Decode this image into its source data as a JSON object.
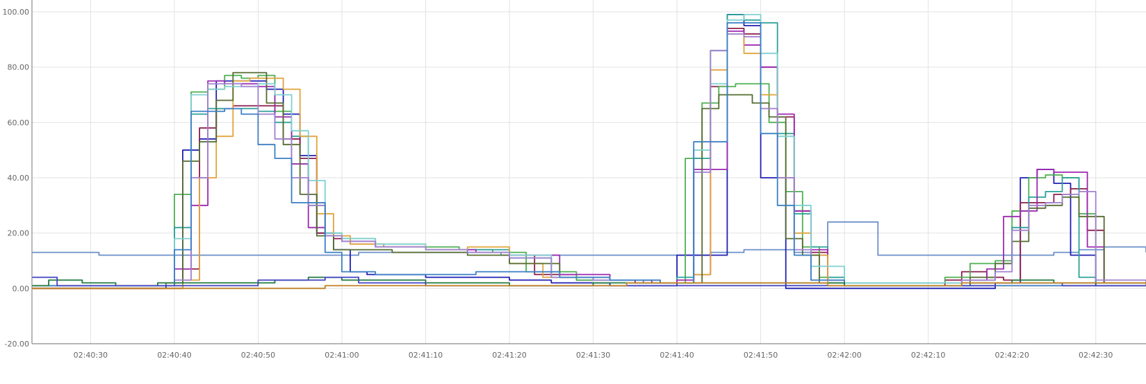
{
  "chart_data": {
    "type": "line",
    "title": "",
    "xlabel": "",
    "ylabel": "",
    "ylim": [
      -20,
      100
    ],
    "xlim": [
      "02:40:23",
      "02:42:36"
    ],
    "yticks": [
      "100.00",
      "80.00",
      "60.00",
      "40.00",
      "20.00",
      "0.00",
      "-20.00"
    ],
    "xticks": [
      "02:40:30",
      "02:40:40",
      "02:40:50",
      "02:41:00",
      "02:41:10",
      "02:41:20",
      "02:41:30",
      "02:41:40",
      "02:41:50",
      "02:42:00",
      "02:42:10",
      "02:42:20",
      "02:42:30"
    ],
    "grid": true,
    "legend": "none",
    "interpolation": "step",
    "series": [
      {
        "color": "#6b8fc9",
        "x": [
          "02:40:23",
          "02:40:27",
          "02:40:31",
          "02:40:35",
          "02:40:40",
          "02:40:49",
          "02:40:55",
          "02:41:02",
          "02:41:10",
          "02:41:19",
          "02:41:21",
          "02:41:23",
          "02:41:28",
          "02:41:32",
          "02:41:36",
          "02:41:42",
          "02:41:44",
          "02:41:46",
          "02:41:48",
          "02:41:51",
          "02:41:54",
          "02:41:56",
          "02:41:58",
          "02:42:04",
          "02:42:10",
          "02:42:16",
          "02:42:22",
          "02:42:25",
          "02:42:28",
          "02:42:31",
          "02:42:33",
          "02:42:36"
        ],
        "y": [
          13,
          13,
          12,
          12,
          12,
          12,
          12,
          13,
          13,
          12,
          12,
          12,
          12,
          12,
          12,
          12,
          13,
          13,
          14,
          14,
          13,
          12,
          24,
          12,
          12,
          12,
          12,
          13,
          14,
          15,
          15,
          13
        ]
      },
      {
        "color": "#1f1fb4",
        "x": [
          "02:40:23",
          "02:40:39",
          "02:40:41",
          "02:40:43",
          "02:40:45",
          "02:40:47",
          "02:40:49",
          "02:40:51",
          "02:40:53",
          "02:40:55",
          "02:40:57",
          "02:40:59",
          "02:41:01",
          "02:41:03",
          "02:41:10",
          "02:41:18",
          "02:41:20",
          "02:41:25",
          "02:41:32",
          "02:41:38",
          "02:41:40",
          "02:41:42",
          "02:41:44",
          "02:41:46",
          "02:41:48",
          "02:41:50",
          "02:41:53",
          "02:42:00",
          "02:42:16",
          "02:42:18",
          "02:42:21",
          "02:42:23",
          "02:42:25",
          "02:42:27",
          "02:42:30",
          "02:42:36"
        ],
        "y": [
          0,
          1,
          50,
          54,
          75,
          75,
          75,
          72,
          63,
          48,
          20,
          14,
          6,
          5,
          4,
          4,
          3,
          2,
          1,
          1,
          12,
          12,
          12,
          99,
          95,
          40,
          0,
          0,
          0,
          2,
          40,
          43,
          38,
          12,
          1,
          1
        ]
      },
      {
        "color": "#8b1a4a",
        "x": [
          "02:40:23",
          "02:40:39",
          "02:40:41",
          "02:40:43",
          "02:40:45",
          "02:40:47",
          "02:40:49",
          "02:40:51",
          "02:40:53",
          "02:40:55",
          "02:40:57",
          "02:40:59",
          "02:41:01",
          "02:41:05",
          "02:41:10",
          "02:41:15",
          "02:41:20",
          "02:41:23",
          "02:41:28",
          "02:41:35",
          "02:41:39",
          "02:41:42",
          "02:41:44",
          "02:41:46",
          "02:41:48",
          "02:41:50",
          "02:41:52",
          "02:41:54",
          "02:41:56",
          "02:41:58",
          "02:42:00",
          "02:42:10",
          "02:42:12",
          "02:42:14",
          "02:42:17",
          "02:42:19",
          "02:42:21",
          "02:42:23",
          "02:42:25",
          "02:42:27",
          "02:42:29",
          "02:42:31",
          "02:42:36"
        ],
        "y": [
          0,
          0,
          7,
          58,
          65,
          66,
          66,
          66,
          54,
          47,
          20,
          18,
          16,
          15,
          14,
          13,
          12,
          5,
          3,
          2,
          2,
          5,
          73,
          94,
          92,
          80,
          62,
          28,
          13,
          3,
          1,
          1,
          3,
          6,
          4,
          3,
          31,
          31,
          34,
          36,
          21,
          2,
          1
        ]
      },
      {
        "color": "#4caf50",
        "x": [
          "02:40:23",
          "02:40:38",
          "02:40:40",
          "02:40:42",
          "02:40:44",
          "02:40:46",
          "02:40:48",
          "02:40:50",
          "02:40:52",
          "02:40:54",
          "02:40:56",
          "02:40:58",
          "02:41:00",
          "02:41:04",
          "02:41:10",
          "02:41:14",
          "02:41:18",
          "02:41:22",
          "02:41:28",
          "02:41:36",
          "02:41:39",
          "02:41:41",
          "02:41:43",
          "02:41:45",
          "02:41:47",
          "02:41:49",
          "02:41:51",
          "02:41:53",
          "02:41:55",
          "02:41:57",
          "02:42:00",
          "02:42:08",
          "02:42:12",
          "02:42:15",
          "02:42:18",
          "02:42:20",
          "02:42:22",
          "02:42:24",
          "02:42:26",
          "02:42:28",
          "02:42:30",
          "02:42:36"
        ],
        "y": [
          1,
          1,
          34,
          71,
          72,
          77,
          76,
          77,
          64,
          45,
          30,
          19,
          18,
          16,
          15,
          14,
          13,
          6,
          3,
          2,
          2,
          47,
          67,
          73,
          74,
          74,
          60,
          35,
          15,
          4,
          2,
          2,
          4,
          9,
          10,
          28,
          40,
          41,
          40,
          27,
          2,
          1
        ]
      },
      {
        "color": "#2aa198",
        "x": [
          "02:40:23",
          "02:40:38",
          "02:40:40",
          "02:40:42",
          "02:40:44",
          "02:40:46",
          "02:40:48",
          "02:40:50",
          "02:40:52",
          "02:40:54",
          "02:40:56",
          "02:40:58",
          "02:41:00",
          "02:41:04",
          "02:41:10",
          "02:41:15",
          "02:41:20",
          "02:41:25",
          "02:41:30",
          "02:41:36",
          "02:41:40",
          "02:41:42",
          "02:41:44",
          "02:41:46",
          "02:41:48",
          "02:41:50",
          "02:41:52",
          "02:41:54",
          "02:41:56",
          "02:41:58",
          "02:42:00",
          "02:42:10",
          "02:42:14",
          "02:42:18",
          "02:42:20",
          "02:42:22",
          "02:42:24",
          "02:42:26",
          "02:42:28",
          "02:42:30",
          "02:42:36"
        ],
        "y": [
          1,
          1,
          22,
          63,
          65,
          65,
          65,
          64,
          60,
          55,
          31,
          20,
          17,
          15,
          14,
          14,
          11,
          4,
          3,
          2,
          4,
          47,
          86,
          99,
          97,
          96,
          56,
          27,
          15,
          4,
          2,
          2,
          3,
          9,
          22,
          33,
          35,
          40,
          4,
          2,
          1
        ]
      },
      {
        "color": "#9c27b0",
        "x": [
          "02:40:23",
          "02:40:38",
          "02:40:40",
          "02:40:42",
          "02:40:44",
          "02:40:46",
          "02:40:48",
          "02:40:50",
          "02:40:52",
          "02:40:54",
          "02:40:56",
          "02:40:58",
          "02:41:00",
          "02:41:04",
          "02:41:10",
          "02:41:16",
          "02:41:20",
          "02:41:26",
          "02:41:32",
          "02:41:37",
          "02:41:40",
          "02:41:42",
          "02:41:44",
          "02:41:46",
          "02:41:48",
          "02:41:50",
          "02:41:52",
          "02:41:54",
          "02:41:56",
          "02:41:58",
          "02:42:00",
          "02:42:10",
          "02:42:14",
          "02:42:17",
          "02:42:19",
          "02:42:21",
          "02:42:23",
          "02:42:25",
          "02:42:27",
          "02:42:29",
          "02:42:31",
          "02:42:36"
        ],
        "y": [
          1,
          1,
          7,
          30,
          75,
          74,
          74,
          73,
          62,
          45,
          22,
          19,
          17,
          15,
          14,
          13,
          12,
          5,
          3,
          2,
          3,
          43,
          43,
          93,
          88,
          80,
          63,
          28,
          14,
          3,
          1,
          1,
          3,
          7,
          26,
          28,
          43,
          42,
          42,
          15,
          2,
          1
        ]
      },
      {
        "color": "#e2a23a",
        "x": [
          "02:40:23",
          "02:40:39",
          "02:40:41",
          "02:40:43",
          "02:40:45",
          "02:40:47",
          "02:40:49",
          "02:40:51",
          "02:40:53",
          "02:40:55",
          "02:40:57",
          "02:40:59",
          "02:41:01",
          "02:41:05",
          "02:41:10",
          "02:41:15",
          "02:41:20",
          "02:41:24",
          "02:41:30",
          "02:41:36",
          "02:41:40",
          "02:41:42",
          "02:41:44",
          "02:41:46",
          "02:41:48",
          "02:41:50",
          "02:41:52",
          "02:41:54",
          "02:41:56",
          "02:41:58",
          "02:42:00",
          "02:42:36"
        ],
        "y": [
          0,
          0,
          3,
          40,
          55,
          75,
          76,
          76,
          72,
          55,
          27,
          19,
          16,
          15,
          14,
          15,
          9,
          4,
          3,
          2,
          2,
          5,
          79,
          92,
          85,
          70,
          40,
          20,
          12,
          2,
          1,
          1
        ]
      },
      {
        "color": "#556b2f",
        "x": [
          "02:40:23",
          "02:40:39",
          "02:40:41",
          "02:40:43",
          "02:40:45",
          "02:40:47",
          "02:40:49",
          "02:40:51",
          "02:40:53",
          "02:40:55",
          "02:40:57",
          "02:40:59",
          "02:41:02",
          "02:41:06",
          "02:41:10",
          "02:41:15",
          "02:41:20",
          "02:41:26",
          "02:41:32",
          "02:41:38",
          "02:41:41",
          "02:41:43",
          "02:41:45",
          "02:41:47",
          "02:41:49",
          "02:41:51",
          "02:41:53",
          "02:41:55",
          "02:41:57",
          "02:42:00",
          "02:42:12",
          "02:42:15",
          "02:42:18",
          "02:42:20",
          "02:42:22",
          "02:42:24",
          "02:42:26",
          "02:42:28",
          "02:42:31",
          "02:42:36"
        ],
        "y": [
          1,
          2,
          46,
          53,
          68,
          78,
          78,
          67,
          52,
          34,
          19,
          14,
          14,
          13,
          13,
          12,
          9,
          4,
          3,
          2,
          2,
          65,
          70,
          70,
          67,
          62,
          18,
          12,
          2,
          1,
          1,
          4,
          9,
          17,
          29,
          30,
          33,
          26,
          2,
          1
        ]
      },
      {
        "color": "#7fd0d0",
        "x": [
          "02:40:23",
          "02:40:38",
          "02:40:40",
          "02:40:42",
          "02:40:44",
          "02:40:46",
          "02:40:48",
          "02:40:50",
          "02:40:52",
          "02:40:54",
          "02:40:56",
          "02:40:58",
          "02:41:00",
          "02:41:04",
          "02:41:10",
          "02:41:15",
          "02:41:20",
          "02:41:25",
          "02:41:30",
          "02:41:36",
          "02:41:40",
          "02:41:42",
          "02:41:44",
          "02:41:46",
          "02:41:48",
          "02:41:50",
          "02:41:52",
          "02:41:54",
          "02:41:56",
          "02:42:00",
          "02:42:36"
        ],
        "y": [
          1,
          1,
          18,
          70,
          72,
          73,
          73,
          74,
          70,
          57,
          39,
          20,
          18,
          16,
          14,
          13,
          12,
          4,
          3,
          2,
          2,
          50,
          74,
          97,
          99,
          85,
          55,
          30,
          8,
          2,
          1
        ]
      },
      {
        "color": "#a080d0",
        "x": [
          "02:40:23",
          "02:40:38",
          "02:40:40",
          "02:40:42",
          "02:40:44",
          "02:40:46",
          "02:40:48",
          "02:40:50",
          "02:40:52",
          "02:40:54",
          "02:40:56",
          "02:40:58",
          "02:41:00",
          "02:41:04",
          "02:41:10",
          "02:41:15",
          "02:41:20",
          "02:41:25",
          "02:41:30",
          "02:41:36",
          "02:41:40",
          "02:41:42",
          "02:41:44",
          "02:41:46",
          "02:41:48",
          "02:41:50",
          "02:41:52",
          "02:41:54",
          "02:41:56",
          "02:42:00",
          "02:42:10",
          "02:42:14",
          "02:42:18",
          "02:42:20",
          "02:42:22",
          "02:42:24",
          "02:42:26",
          "02:42:28",
          "02:42:30",
          "02:42:36"
        ],
        "y": [
          1,
          1,
          3,
          40,
          74,
          74,
          73,
          63,
          54,
          40,
          30,
          19,
          17,
          15,
          14,
          13,
          11,
          4,
          3,
          2,
          2,
          42,
          86,
          92,
          91,
          65,
          40,
          14,
          3,
          1,
          1,
          3,
          6,
          21,
          30,
          31,
          34,
          35,
          3,
          1
        ]
      },
      {
        "color": "#3a7fc4",
        "x": [
          "02:40:23",
          "02:40:38",
          "02:40:40",
          "02:40:42",
          "02:40:44",
          "02:40:46",
          "02:40:48",
          "02:40:50",
          "02:40:52",
          "02:40:54",
          "02:40:56",
          "02:40:58",
          "02:41:00",
          "02:41:04",
          "02:41:10",
          "02:41:16",
          "02:41:20",
          "02:41:26",
          "02:41:32",
          "02:41:38",
          "02:41:40",
          "02:41:42",
          "02:41:44",
          "02:41:46",
          "02:41:48",
          "02:41:50",
          "02:41:52",
          "02:41:54",
          "02:41:56",
          "02:42:00",
          "02:42:36"
        ],
        "y": [
          1,
          1,
          14,
          64,
          64,
          65,
          63,
          52,
          47,
          31,
          31,
          13,
          6,
          5,
          5,
          6,
          6,
          4,
          3,
          2,
          2,
          53,
          53,
          96,
          96,
          56,
          30,
          12,
          3,
          1,
          1
        ]
      },
      {
        "color": "#1e7a3c",
        "x": [
          "02:40:23",
          "02:40:25",
          "02:40:29",
          "02:40:33",
          "02:40:38",
          "02:40:40",
          "02:40:44",
          "02:40:48",
          "02:40:52",
          "02:40:56",
          "02:41:00",
          "02:41:05",
          "02:41:10",
          "02:41:15",
          "02:41:20",
          "02:41:25",
          "02:41:30",
          "02:41:35",
          "02:41:40",
          "02:41:45",
          "02:41:50",
          "02:41:55",
          "02:42:00",
          "02:42:05",
          "02:42:10",
          "02:42:15",
          "02:42:20",
          "02:42:25",
          "02:42:30",
          "02:42:36"
        ],
        "y": [
          1,
          3,
          2,
          1,
          2,
          2,
          2,
          2,
          3,
          4,
          3,
          3,
          2,
          2,
          1,
          1,
          2,
          2,
          2,
          2,
          2,
          2,
          1,
          1,
          1,
          2,
          3,
          2,
          2,
          2
        ]
      },
      {
        "color": "#4040c0",
        "x": [
          "02:40:23",
          "02:40:26",
          "02:40:30",
          "02:40:34",
          "02:40:38",
          "02:40:42",
          "02:40:46",
          "02:40:50",
          "02:40:54",
          "02:40:58",
          "02:41:02",
          "02:41:06",
          "02:41:10",
          "02:41:14",
          "02:41:18",
          "02:41:22",
          "02:41:26",
          "02:41:30",
          "02:41:34",
          "02:41:38",
          "02:41:42",
          "02:41:46",
          "02:41:50",
          "02:41:54",
          "02:41:58",
          "02:42:02",
          "02:42:06",
          "02:42:10",
          "02:42:14",
          "02:42:18",
          "02:42:22",
          "02:42:26",
          "02:42:30",
          "02:42:36"
        ],
        "y": [
          4,
          1,
          1,
          1,
          1,
          1,
          1,
          3,
          3,
          4,
          2,
          2,
          1,
          1,
          1,
          1,
          1,
          1,
          1,
          1,
          1,
          1,
          1,
          1,
          1,
          1,
          1,
          1,
          1,
          2,
          2,
          1,
          1,
          1
        ]
      },
      {
        "color": "#c08020",
        "x": [
          "02:40:23",
          "02:40:30",
          "02:40:38",
          "02:40:42",
          "02:40:46",
          "02:40:50",
          "02:40:54",
          "02:40:58",
          "02:41:02",
          "02:41:06",
          "02:41:10",
          "02:41:14",
          "02:41:18",
          "02:41:22",
          "02:41:26",
          "02:41:30",
          "02:41:34",
          "02:41:38",
          "02:41:42",
          "02:41:46",
          "02:41:50",
          "02:41:54",
          "02:41:58",
          "02:42:02",
          "02:42:06",
          "02:42:10",
          "02:42:14",
          "02:42:18",
          "02:42:22",
          "02:42:26",
          "02:42:30",
          "02:42:36"
        ],
        "y": [
          0,
          0,
          0,
          0,
          0,
          0,
          0,
          1,
          1,
          1,
          1,
          1,
          1,
          1,
          1,
          1,
          2,
          2,
          2,
          2,
          2,
          2,
          1,
          1,
          1,
          1,
          2,
          2,
          2,
          2,
          2,
          1
        ]
      }
    ]
  }
}
